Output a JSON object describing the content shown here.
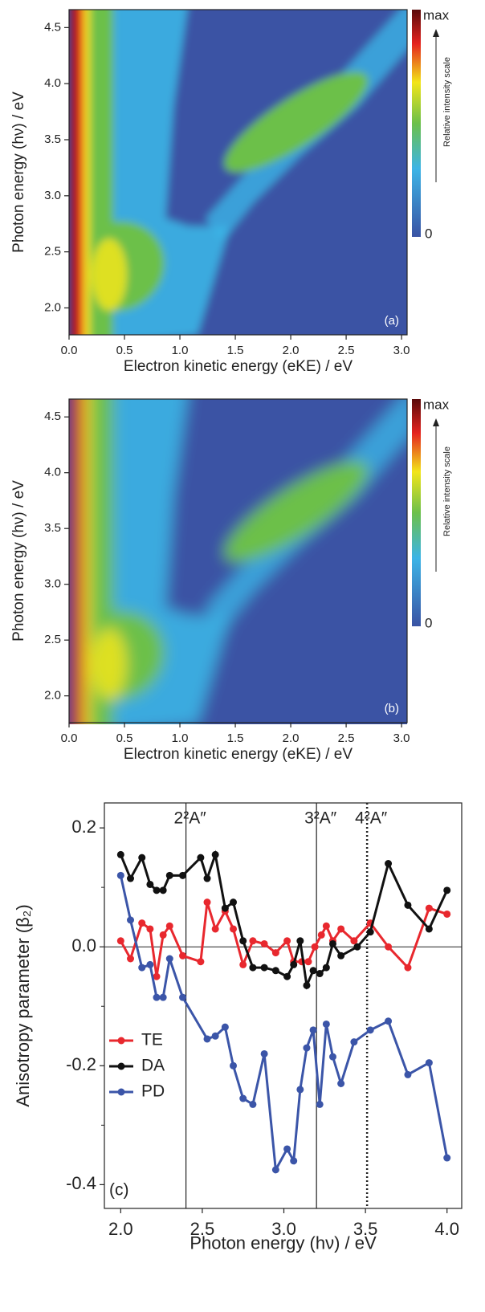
{
  "chart_data": [
    {
      "type": "heatmap",
      "panel_label": "(a)",
      "xlabel": "Electron kinetic energy (eKE) / eV",
      "ylabel": "Photon energy (hν) / eV",
      "xlim": [
        0,
        3.05
      ],
      "ylim": [
        1.76,
        4.66
      ],
      "xticks": [
        {
          "value": 0,
          "label": "0.0"
        },
        {
          "value": 0.5,
          "label": "0.5"
        },
        {
          "value": 1,
          "label": "1.0"
        },
        {
          "value": 1.5,
          "label": "1.5"
        },
        {
          "value": 2,
          "label": "2.0"
        },
        {
          "value": 2.5,
          "label": "2.5"
        },
        {
          "value": 3,
          "label": "3.0"
        }
      ],
      "yticks": [
        {
          "value": 2,
          "label": "2.0"
        },
        2.5,
        {
          "value": 3,
          "label": "3.0"
        },
        3.5,
        {
          "value": 4,
          "label": "4.0"
        },
        4.5
      ],
      "colorbar": {
        "max_label": "max",
        "min_label": "0",
        "label": "Relative intensity scale"
      }
    },
    {
      "type": "heatmap",
      "panel_label": "(b)",
      "xlabel": "Electron kinetic energy (eKE) / eV",
      "ylabel": "Photon energy (hν) / eV",
      "xlim": [
        0,
        3.05
      ],
      "ylim": [
        1.76,
        4.66
      ],
      "xticks": [
        {
          "value": 0,
          "label": "0.0"
        },
        {
          "value": 0.5,
          "label": "0.5"
        },
        {
          "value": 1,
          "label": "1.0"
        },
        {
          "value": 1.5,
          "label": "1.5"
        },
        {
          "value": 2,
          "label": "2.0"
        },
        {
          "value": 2.5,
          "label": "2.5"
        },
        {
          "value": 3,
          "label": "3.0"
        }
      ],
      "yticks": [
        {
          "value": 2,
          "label": "2.0"
        },
        2.5,
        {
          "value": 3,
          "label": "3.0"
        },
        3.5,
        {
          "value": 4,
          "label": "4.0"
        },
        4.5
      ],
      "colorbar": {
        "max_label": "max",
        "min_label": "0",
        "label": "Relative intensity scale"
      }
    },
    {
      "type": "line",
      "panel_label": "(c)",
      "xlabel": "Photon energy (hν) / eV",
      "ylabel": "Anisotropy parameter (β₂)",
      "xlim": [
        1.9,
        4.09
      ],
      "ylim": [
        -0.44,
        0.242
      ],
      "xticks": [
        {
          "value": 2,
          "label": "2.0"
        },
        2.5,
        {
          "value": 3,
          "label": "3.0"
        },
        3.5,
        {
          "value": 4,
          "label": "4.0"
        }
      ],
      "yticks": [
        0.2,
        {
          "value": 0,
          "label": "0.0"
        },
        -0.2,
        -0.4
      ],
      "yminorticks": [
        0.1,
        -0.1,
        -0.3
      ],
      "hline": 0,
      "annotations": [
        {
          "x": 2.4,
          "label": "2²A″",
          "style": "solid"
        },
        {
          "x": 3.2,
          "label": "3²A″",
          "style": "solid"
        },
        {
          "x": 3.51,
          "label": "4²A″",
          "style": "dotted"
        }
      ],
      "legend": "lower left",
      "series": [
        {
          "name": "TE",
          "color": "#e8282e",
          "x": [
            2.0,
            2.06,
            2.13,
            2.18,
            2.22,
            2.26,
            2.3,
            2.38,
            2.49,
            2.53,
            2.58,
            2.64,
            2.69,
            2.75,
            2.81,
            2.88,
            2.95,
            3.02,
            3.06,
            3.11,
            3.15,
            3.19,
            3.23,
            3.26,
            3.3,
            3.35,
            3.43,
            3.53,
            3.64,
            3.76,
            3.89,
            4.0
          ],
          "values": [
            0.01,
            -0.02,
            0.04,
            0.03,
            -0.05,
            0.02,
            0.035,
            -0.015,
            -0.025,
            0.075,
            0.03,
            0.06,
            0.03,
            -0.03,
            0.01,
            0.005,
            -0.01,
            0.01,
            -0.025,
            -0.025,
            -0.025,
            0.0,
            0.02,
            0.035,
            0.01,
            0.03,
            0.01,
            0.04,
            0.0,
            -0.035,
            0.065,
            0.055
          ]
        },
        {
          "name": "DA",
          "color": "#111111",
          "x": [
            2.0,
            2.06,
            2.13,
            2.18,
            2.22,
            2.26,
            2.3,
            2.38,
            2.49,
            2.53,
            2.58,
            2.64,
            2.69,
            2.75,
            2.81,
            2.88,
            2.95,
            3.02,
            3.06,
            3.1,
            3.14,
            3.18,
            3.22,
            3.26,
            3.3,
            3.35,
            3.45,
            3.53,
            3.64,
            3.76,
            3.89,
            4.0
          ],
          "values": [
            0.155,
            0.115,
            0.15,
            0.105,
            0.095,
            0.095,
            0.12,
            0.12,
            0.15,
            0.115,
            0.155,
            0.065,
            0.075,
            0.01,
            -0.035,
            -0.035,
            -0.04,
            -0.05,
            -0.03,
            0.01,
            -0.065,
            -0.04,
            -0.045,
            -0.035,
            0.005,
            -0.015,
            0.0,
            0.025,
            0.14,
            0.07,
            0.03,
            0.095
          ]
        },
        {
          "name": "PD",
          "color": "#3b55a8",
          "x": [
            2.0,
            2.06,
            2.13,
            2.18,
            2.22,
            2.26,
            2.3,
            2.38,
            2.53,
            2.58,
            2.64,
            2.69,
            2.75,
            2.81,
            2.88,
            2.95,
            3.02,
            3.06,
            3.1,
            3.14,
            3.18,
            3.22,
            3.26,
            3.3,
            3.35,
            3.43,
            3.53,
            3.64,
            3.76,
            3.89,
            4.0
          ],
          "values": [
            0.12,
            0.045,
            -0.035,
            -0.03,
            -0.085,
            -0.085,
            -0.02,
            -0.085,
            -0.155,
            -0.15,
            -0.135,
            -0.2,
            -0.255,
            -0.265,
            -0.18,
            -0.375,
            -0.34,
            -0.36,
            -0.24,
            -0.17,
            -0.14,
            -0.265,
            -0.13,
            -0.185,
            -0.23,
            -0.16,
            -0.14,
            -0.125,
            -0.215,
            -0.195,
            -0.355
          ]
        }
      ]
    }
  ]
}
